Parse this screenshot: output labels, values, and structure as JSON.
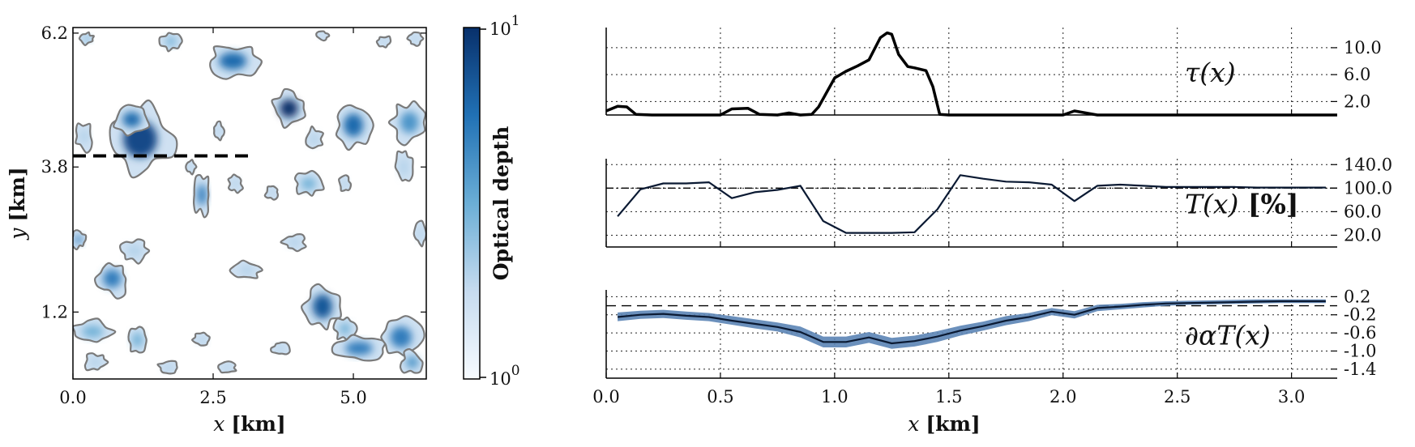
{
  "chart_data": [
    {
      "type": "heatmap",
      "xlabel": "x [km]",
      "ylabel": "y [km]",
      "xlim": [
        0,
        6.3
      ],
      "ylim": [
        0,
        6.3
      ],
      "xticks": [
        "0.0",
        "2.5",
        "5.0"
      ],
      "xtick_values": [
        0,
        2.5,
        5.0
      ],
      "yticks": [
        "1.2",
        "3.8",
        "6.2"
      ],
      "ytick_values": [
        1.2,
        3.8,
        6.2
      ],
      "colorbar": {
        "label": "Optical depth",
        "min_label": "10",
        "min_exp": "0",
        "max_label": "10",
        "max_exp": "1",
        "min": 1,
        "max": 10,
        "scale": "log",
        "color_low": "#f7fbff",
        "color_high": "#08306b"
      },
      "transect": {
        "y": 4.0,
        "x": [
          0,
          3.15
        ],
        "style": "dashed"
      },
      "clouds": [
        {
          "x": 1.2,
          "y": 4.3,
          "rx": 0.55,
          "ry": 0.6,
          "tau": 8
        },
        {
          "x": 1.05,
          "y": 4.65,
          "rx": 0.3,
          "ry": 0.25,
          "tau": 6
        },
        {
          "x": 2.85,
          "y": 5.7,
          "rx": 0.45,
          "ry": 0.28,
          "tau": 6
        },
        {
          "x": 3.85,
          "y": 4.85,
          "rx": 0.3,
          "ry": 0.3,
          "tau": 10
        },
        {
          "x": 5.0,
          "y": 4.55,
          "rx": 0.32,
          "ry": 0.38,
          "tau": 6
        },
        {
          "x": 6.0,
          "y": 4.6,
          "rx": 0.3,
          "ry": 0.35,
          "tau": 4
        },
        {
          "x": 1.75,
          "y": 6.05,
          "rx": 0.18,
          "ry": 0.15,
          "tau": 3
        },
        {
          "x": 0.25,
          "y": 6.1,
          "rx": 0.12,
          "ry": 0.1,
          "tau": 3
        },
        {
          "x": 0.1,
          "y": 2.5,
          "rx": 0.12,
          "ry": 0.15,
          "tau": 5
        },
        {
          "x": 0.7,
          "y": 1.8,
          "rx": 0.3,
          "ry": 0.3,
          "tau": 5
        },
        {
          "x": 1.1,
          "y": 2.3,
          "rx": 0.25,
          "ry": 0.2,
          "tau": 2
        },
        {
          "x": 2.3,
          "y": 3.3,
          "rx": 0.15,
          "ry": 0.35,
          "tau": 5
        },
        {
          "x": 2.1,
          "y": 3.8,
          "rx": 0.1,
          "ry": 0.12,
          "tau": 2
        },
        {
          "x": 2.9,
          "y": 3.5,
          "rx": 0.12,
          "ry": 0.15,
          "tau": 2
        },
        {
          "x": 4.2,
          "y": 3.5,
          "rx": 0.25,
          "ry": 0.2,
          "tau": 3
        },
        {
          "x": 3.95,
          "y": 2.45,
          "rx": 0.2,
          "ry": 0.15,
          "tau": 2
        },
        {
          "x": 4.45,
          "y": 1.3,
          "rx": 0.32,
          "ry": 0.4,
          "tau": 7
        },
        {
          "x": 4.85,
          "y": 0.9,
          "rx": 0.18,
          "ry": 0.2,
          "tau": 3
        },
        {
          "x": 5.1,
          "y": 0.55,
          "rx": 0.45,
          "ry": 0.22,
          "tau": 5
        },
        {
          "x": 5.85,
          "y": 0.75,
          "rx": 0.35,
          "ry": 0.35,
          "tau": 5
        },
        {
          "x": 6.05,
          "y": 0.3,
          "rx": 0.2,
          "ry": 0.2,
          "tau": 4
        },
        {
          "x": 0.35,
          "y": 0.85,
          "rx": 0.35,
          "ry": 0.2,
          "tau": 3
        },
        {
          "x": 1.15,
          "y": 0.7,
          "rx": 0.18,
          "ry": 0.25,
          "tau": 3
        },
        {
          "x": 0.4,
          "y": 0.3,
          "rx": 0.2,
          "ry": 0.15,
          "tau": 2
        },
        {
          "x": 1.7,
          "y": 0.2,
          "rx": 0.18,
          "ry": 0.12,
          "tau": 2
        },
        {
          "x": 3.1,
          "y": 1.95,
          "rx": 0.25,
          "ry": 0.15,
          "tau": 2
        },
        {
          "x": 2.3,
          "y": 0.7,
          "rx": 0.15,
          "ry": 0.12,
          "tau": 2
        },
        {
          "x": 3.7,
          "y": 0.55,
          "rx": 0.15,
          "ry": 0.12,
          "tau": 2
        },
        {
          "x": 2.75,
          "y": 0.2,
          "rx": 0.15,
          "ry": 0.1,
          "tau": 2
        },
        {
          "x": 5.9,
          "y": 3.8,
          "rx": 0.15,
          "ry": 0.3,
          "tau": 2
        },
        {
          "x": 4.3,
          "y": 4.3,
          "rx": 0.15,
          "ry": 0.2,
          "tau": 2
        },
        {
          "x": 4.85,
          "y": 3.5,
          "rx": 0.1,
          "ry": 0.15,
          "tau": 2
        },
        {
          "x": 0.2,
          "y": 4.35,
          "rx": 0.15,
          "ry": 0.25,
          "tau": 2
        },
        {
          "x": 2.6,
          "y": 4.45,
          "rx": 0.1,
          "ry": 0.15,
          "tau": 2
        },
        {
          "x": 3.55,
          "y": 3.35,
          "rx": 0.12,
          "ry": 0.12,
          "tau": 2
        },
        {
          "x": 6.2,
          "y": 2.6,
          "rx": 0.1,
          "ry": 0.2,
          "tau": 2
        },
        {
          "x": 6.1,
          "y": 6.1,
          "rx": 0.12,
          "ry": 0.12,
          "tau": 2
        },
        {
          "x": 5.55,
          "y": 6.05,
          "rx": 0.12,
          "ry": 0.1,
          "tau": 2
        },
        {
          "x": 4.45,
          "y": 6.15,
          "rx": 0.1,
          "ry": 0.08,
          "tau": 2
        }
      ]
    },
    {
      "type": "line",
      "label": "τ(x)",
      "xlim": [
        0,
        3.2
      ],
      "ylim": [
        0,
        13
      ],
      "yticks": [
        "2.0",
        "6.0",
        "10.0"
      ],
      "ytick_values": [
        2,
        6,
        10
      ],
      "x": [
        0.0,
        0.05,
        0.09,
        0.13,
        0.2,
        0.5,
        0.55,
        0.62,
        0.67,
        0.75,
        0.8,
        0.85,
        0.9,
        0.93,
        1.0,
        1.05,
        1.1,
        1.15,
        1.2,
        1.23,
        1.25,
        1.28,
        1.32,
        1.35,
        1.4,
        1.43,
        1.46,
        1.5,
        2.0,
        2.05,
        2.1,
        2.15,
        3.2
      ],
      "y": [
        0.6,
        1.3,
        1.2,
        0.1,
        0,
        0,
        0.9,
        1.0,
        0.1,
        0,
        0.3,
        0,
        0.1,
        1.2,
        5.5,
        6.5,
        7.3,
        8.2,
        11.5,
        12.2,
        12.0,
        9.0,
        7.2,
        7.0,
        6.6,
        4.2,
        0.1,
        0,
        0,
        0.6,
        0.3,
        0,
        0
      ]
    },
    {
      "type": "line",
      "label": "T(x)",
      "label_unit": "[%]",
      "xlim": [
        0,
        3.2
      ],
      "ylim": [
        0,
        150
      ],
      "yticks": [
        "20.0",
        "60.0",
        "100.0",
        "140.0"
      ],
      "ytick_values": [
        20,
        60,
        100,
        140
      ],
      "reference_line": 100,
      "x": [
        0.05,
        0.15,
        0.25,
        0.35,
        0.45,
        0.55,
        0.65,
        0.75,
        0.85,
        0.95,
        1.05,
        1.15,
        1.25,
        1.35,
        1.45,
        1.55,
        1.65,
        1.75,
        1.85,
        1.95,
        2.05,
        2.15,
        2.25,
        2.35,
        2.45,
        2.55,
        2.65,
        2.75,
        2.85,
        2.95,
        3.05,
        3.15
      ],
      "y": [
        52,
        98,
        108,
        108,
        110,
        83,
        93,
        97,
        104,
        44,
        24,
        24,
        24,
        25,
        64,
        122,
        116,
        111,
        110,
        106,
        78,
        104,
        106,
        104,
        102,
        102,
        102,
        102,
        101,
        101,
        101,
        101
      ]
    },
    {
      "type": "area",
      "label": "∂αT(x)",
      "xlim": [
        0,
        3.2
      ],
      "ylim": [
        -1.6,
        0.35
      ],
      "yticks": [
        "-1.4",
        "-1.0",
        "-0.6",
        "-0.2",
        "0.2"
      ],
      "ytick_values": [
        -1.4,
        -1.0,
        -0.6,
        -0.2,
        0.2
      ],
      "reference_line": 0,
      "band_color": "#5b84b5",
      "x": [
        0.05,
        0.15,
        0.25,
        0.35,
        0.45,
        0.55,
        0.65,
        0.75,
        0.85,
        0.95,
        1.05,
        1.15,
        1.25,
        1.35,
        1.45,
        1.55,
        1.65,
        1.75,
        1.85,
        1.95,
        2.05,
        2.15,
        2.25,
        2.35,
        2.45,
        2.55,
        2.65,
        2.75,
        2.85,
        2.95,
        3.05,
        3.15
      ],
      "y": [
        -0.25,
        -0.2,
        -0.18,
        -0.22,
        -0.25,
        -0.33,
        -0.4,
        -0.47,
        -0.58,
        -0.8,
        -0.8,
        -0.7,
        -0.83,
        -0.78,
        -0.68,
        -0.55,
        -0.45,
        -0.33,
        -0.25,
        -0.13,
        -0.2,
        -0.05,
        -0.02,
        0.02,
        0.05,
        0.06,
        0.07,
        0.08,
        0.09,
        0.1,
        0.1,
        0.1
      ],
      "y_low": [
        -0.34,
        -0.29,
        -0.27,
        -0.31,
        -0.34,
        -0.42,
        -0.5,
        -0.57,
        -0.7,
        -0.92,
        -0.92,
        -0.82,
        -0.95,
        -0.9,
        -0.8,
        -0.66,
        -0.55,
        -0.43,
        -0.34,
        -0.21,
        -0.28,
        -0.12,
        -0.08,
        -0.04,
        0.0,
        0.02,
        0.03,
        0.04,
        0.05,
        0.06,
        0.06,
        0.06
      ],
      "y_high": [
        -0.15,
        -0.11,
        -0.09,
        -0.13,
        -0.16,
        -0.23,
        -0.3,
        -0.37,
        -0.46,
        -0.68,
        -0.68,
        -0.58,
        -0.71,
        -0.66,
        -0.56,
        -0.44,
        -0.35,
        -0.23,
        -0.16,
        -0.05,
        -0.12,
        0.02,
        0.04,
        0.08,
        0.1,
        0.11,
        0.12,
        0.13,
        0.14,
        0.14,
        0.14,
        0.14
      ]
    }
  ],
  "shared_xlabel": "x [km]",
  "shared_xticks": [
    "0.0",
    "0.5",
    "1.0",
    "1.5",
    "2.0",
    "2.5",
    "3.0"
  ],
  "shared_xtick_values": [
    0,
    0.5,
    1.0,
    1.5,
    2.0,
    2.5,
    3.0
  ]
}
